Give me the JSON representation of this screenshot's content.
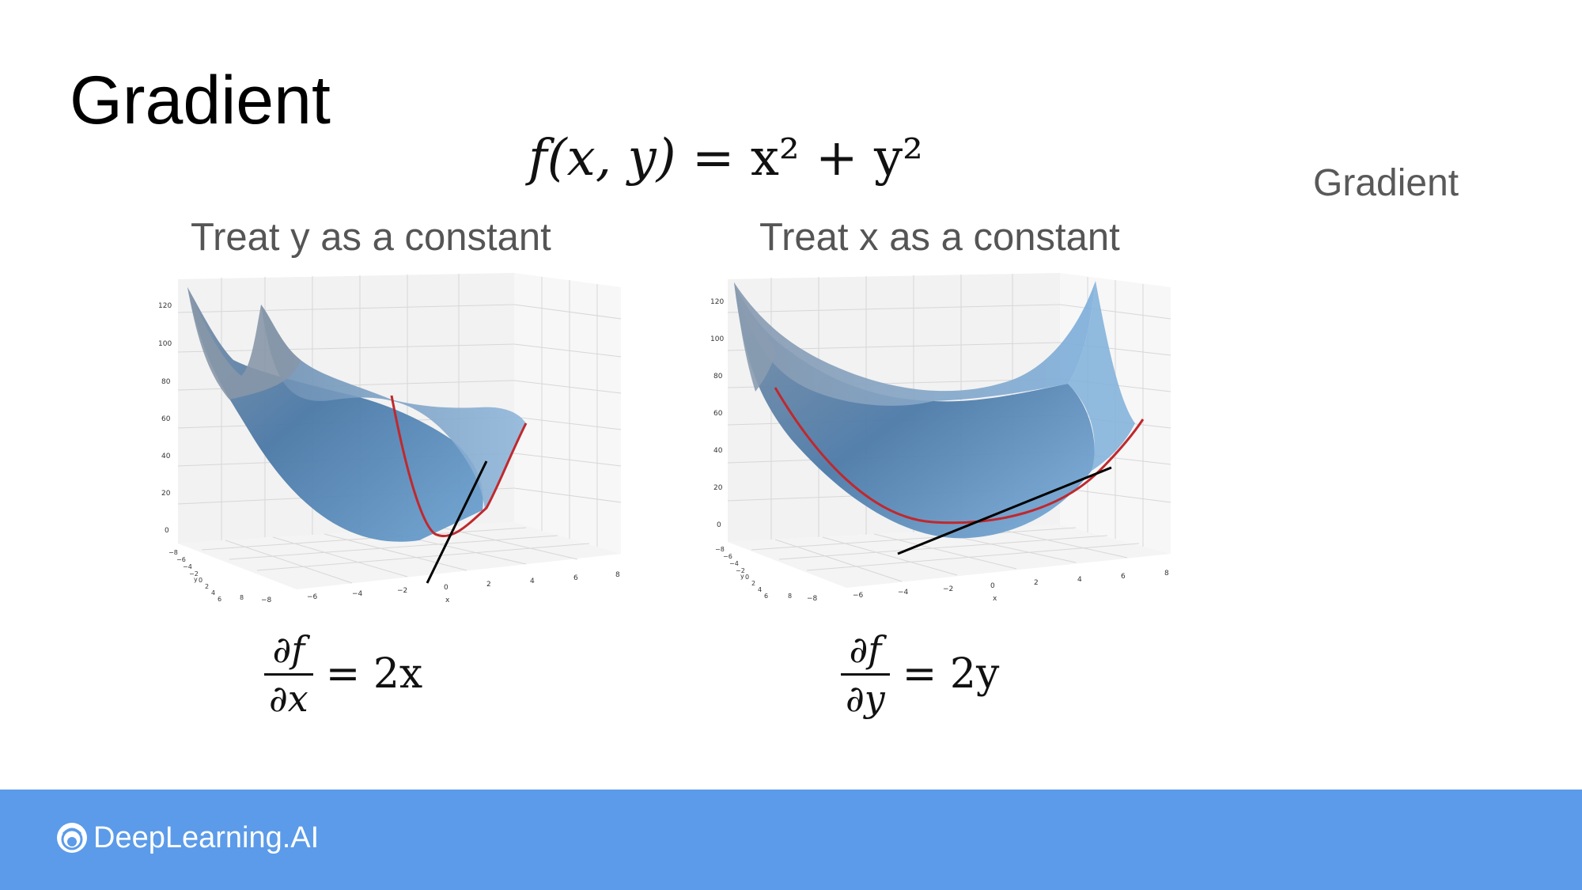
{
  "slide": {
    "title": "Gradient",
    "side_label": "Gradient"
  },
  "formula": {
    "lhs": "f(x, y)",
    "rhs": "= x² + y²"
  },
  "panels": [
    {
      "caption": "Treat y as a constant",
      "derivative": {
        "numerator": "∂f",
        "denominator": "∂x",
        "rhs": "= 2x"
      }
    },
    {
      "caption": "Treat x as a constant",
      "derivative": {
        "numerator": "∂f",
        "denominator": "∂y",
        "rhs": "= 2y"
      }
    }
  ],
  "axes": {
    "z_ticks": [
      "120",
      "100",
      "80",
      "60",
      "40",
      "20",
      "0"
    ],
    "x_ticks": [
      "−8",
      "−6",
      "−4",
      "−2",
      "0",
      "2",
      "4",
      "6",
      "8"
    ],
    "y_ticks": [
      "−8",
      "−6",
      "−4",
      "−2",
      "0",
      "2",
      "4",
      "6",
      "8"
    ],
    "x_label": "x",
    "y_label": "y"
  },
  "footer": {
    "brand": "DeepLearning.AI",
    "background_color": "#5b9be9"
  },
  "colors": {
    "surface": "#5b87b3",
    "curve": "#c0282d",
    "tangent": "#000000"
  }
}
